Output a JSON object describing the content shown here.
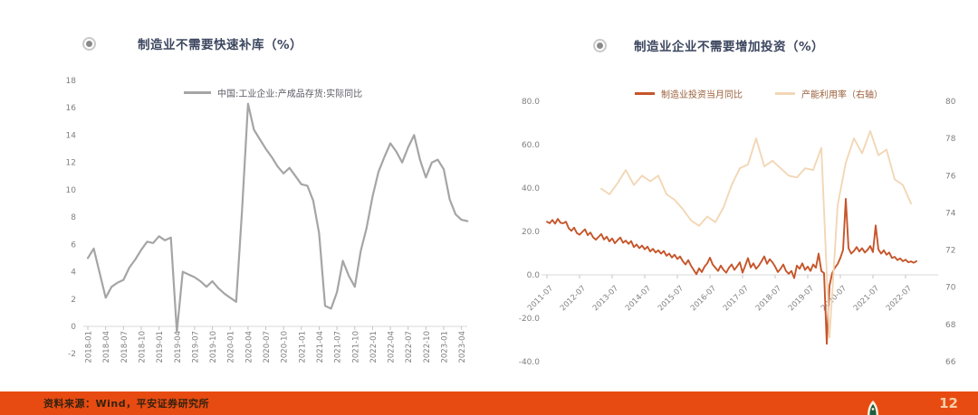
{
  "footer": {
    "source": "资料来源：Wind，平安证券研究所",
    "page_number": "12",
    "bar_color": "#e84b11"
  },
  "colors": {
    "title_text": "#3c465f",
    "axis_text": "#7f7f7f",
    "axis_line": "#d8d8d8",
    "left_series": "#a5a5a5",
    "invest_series": "#c6552a",
    "capacity_series": "#f2d7b6",
    "footer_bar": "#e84b11"
  },
  "chart_data": [
    {
      "type": "line",
      "title": "制造业不需要快速补库（%）",
      "legend_position": "top",
      "grid": false,
      "ylim": [
        -2,
        18
      ],
      "y_ticks": [
        18,
        16,
        14,
        12,
        10,
        8,
        6,
        4,
        2,
        0,
        -2
      ],
      "axis_cross_y": 0,
      "x_start": "2018-01",
      "x_freq": "monthly",
      "x_tick_every_months": 3,
      "x_tick_labels": [
        "2018-01",
        "2018-04",
        "2018-07",
        "2018-10",
        "2019-01",
        "2019-04",
        "2019-07",
        "2019-10",
        "2020-01",
        "2020-04",
        "2020-07",
        "2020-10",
        "2021-01",
        "2021-04",
        "2021-07",
        "2021-10",
        "2022-01",
        "2022-04",
        "2022-07",
        "2022-10",
        "2023-01",
        "2023-04"
      ],
      "series": [
        {
          "name": "中国:工业企业:产成品存货:实际同比",
          "color": "#a5a5a5",
          "values": [
            5.0,
            5.7,
            3.9,
            2.1,
            2.9,
            3.2,
            3.4,
            4.3,
            4.9,
            5.6,
            6.2,
            6.1,
            6.6,
            6.3,
            6.5,
            -0.4,
            4.0,
            3.8,
            3.6,
            3.3,
            2.9,
            3.3,
            2.8,
            2.4,
            2.1,
            1.8,
            8.5,
            16.3,
            14.4,
            13.7,
            13.0,
            12.4,
            11.7,
            11.2,
            11.6,
            11.0,
            10.4,
            10.3,
            9.2,
            6.8,
            1.5,
            1.3,
            2.5,
            4.8,
            3.7,
            2.9,
            5.5,
            7.2,
            9.5,
            11.3,
            12.4,
            13.4,
            12.8,
            12.0,
            13.1,
            14.0,
            12.2,
            10.9,
            12.0,
            12.2,
            11.5,
            9.3,
            8.2,
            7.8,
            7.7
          ]
        }
      ]
    },
    {
      "type": "line",
      "title": "制造业企业不需要增加投资（%）",
      "legend_position": "top",
      "grid": false,
      "ylim_left": [
        -40,
        80
      ],
      "y_ticks_left": [
        "80.0",
        "60.0",
        "40.0",
        "20.0",
        "0.0",
        "-20.0",
        "-40.0"
      ],
      "ylim_right": [
        66,
        80
      ],
      "y_ticks_right": [
        "80",
        "78",
        "76",
        "74",
        "72",
        "70",
        "68",
        "66"
      ],
      "axis_cross_y": 0,
      "x_tick_labels": [
        "2011-07",
        "2012-07",
        "2013-07",
        "2014-07",
        "2015-07",
        "2016-07",
        "2017-07",
        "2018-07",
        "2019-07",
        "2020-07",
        "2021-07",
        "2022-07"
      ],
      "series": [
        {
          "name": "制造业投资当月同比",
          "axis": "left",
          "color": "#c6552a",
          "x_start": "2011-07",
          "x_freq": "monthly",
          "values": [
            24.5,
            23.8,
            25.3,
            23.6,
            25.8,
            24.0,
            23.8,
            24.5,
            21.5,
            20.3,
            21.8,
            19.3,
            18.5,
            19.8,
            21.0,
            18.3,
            19.5,
            17.3,
            16.2,
            17.5,
            18.8,
            16.3,
            17.6,
            15.4,
            16.8,
            14.6,
            16.0,
            17.2,
            14.8,
            15.8,
            14.3,
            15.6,
            12.8,
            14.0,
            12.3,
            13.5,
            11.8,
            13.0,
            10.8,
            12.0,
            10.3,
            11.3,
            9.8,
            11.0,
            8.8,
            9.8,
            8.0,
            9.3,
            7.3,
            8.5,
            6.3,
            4.8,
            6.8,
            4.3,
            2.3,
            0.3,
            3.0,
            1.3,
            3.8,
            5.3,
            7.9,
            4.8,
            3.3,
            1.8,
            4.3,
            2.3,
            1.0,
            3.3,
            4.8,
            2.3,
            4.0,
            5.8,
            1.0,
            4.3,
            7.7,
            3.4,
            5.3,
            2.8,
            4.3,
            6.3,
            8.5,
            5.1,
            7.2,
            5.8,
            3.8,
            1.3,
            2.8,
            4.8,
            1.8,
            0.5,
            1.8,
            -1.5,
            4.3,
            2.8,
            5.3,
            2.3,
            3.8,
            1.8,
            4.8,
            3.3,
            9.8,
            1.8,
            0.8,
            -31.8,
            -5.0,
            0.8,
            3.3,
            5.0,
            7.8,
            11.5,
            35.0,
            12.3,
            9.8,
            11.0,
            12.8,
            10.8,
            12.3,
            10.3,
            11.5,
            13.3,
            10.5,
            22.8,
            11.8,
            9.8,
            11.3,
            9.3,
            10.3,
            7.8,
            8.3,
            6.8,
            7.6,
            6.3,
            7.0,
            5.8,
            6.2,
            5.6,
            6.3
          ]
        },
        {
          "name": "产能利用率（右轴）",
          "axis": "right",
          "color": "#f2d7b6",
          "x_start": "2013-03",
          "x_freq": "quarterly",
          "values": [
            75.3,
            75.0,
            75.6,
            76.3,
            75.5,
            76.0,
            75.7,
            76.0,
            75.0,
            74.7,
            74.2,
            73.6,
            73.3,
            73.8,
            73.5,
            74.3,
            75.5,
            76.4,
            76.6,
            78.0,
            76.5,
            76.8,
            76.4,
            76.0,
            75.9,
            76.4,
            76.3,
            77.5,
            67.3,
            74.4,
            76.7,
            78.0,
            77.2,
            78.4,
            77.1,
            77.4,
            75.8,
            75.5,
            74.5
          ]
        }
      ]
    }
  ]
}
